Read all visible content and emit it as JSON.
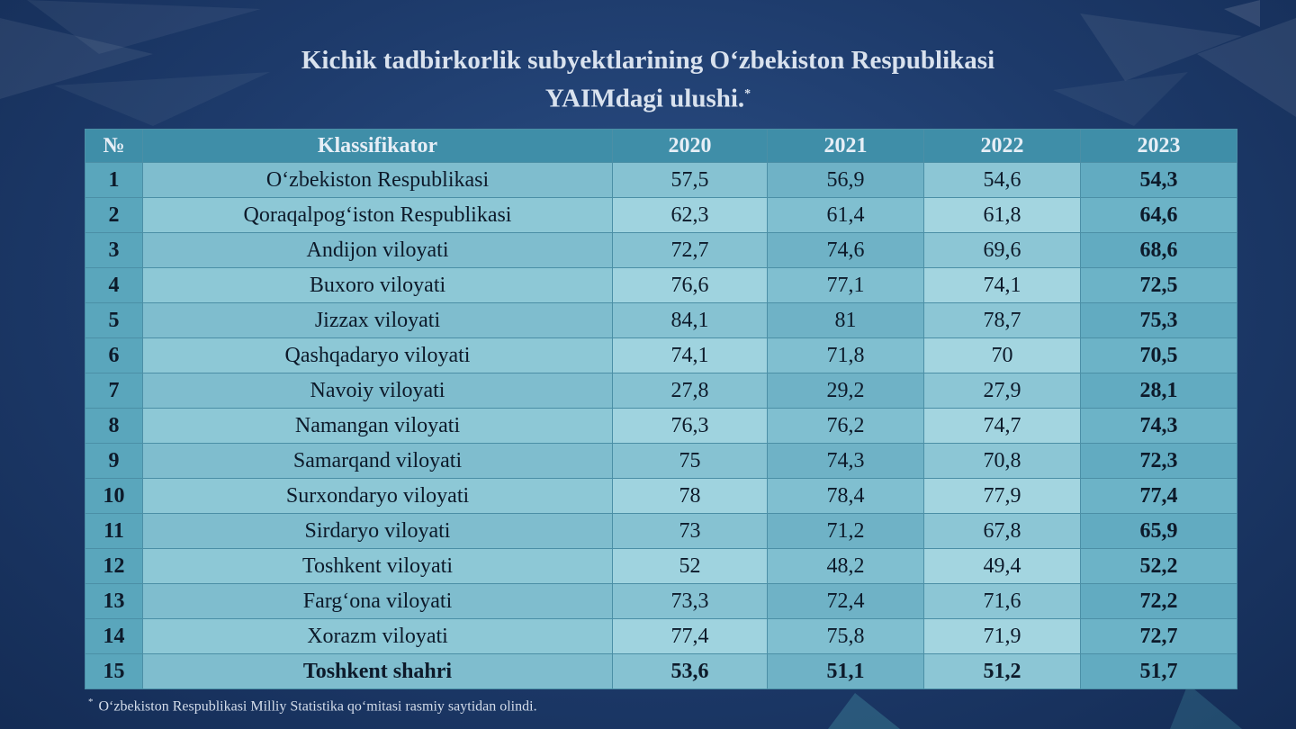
{
  "title_line1": "Kichik tadbirkorlik subyektlarining O‘zbekiston Respublikasi",
  "title_line2": "YAIMdagi ulushi.",
  "title_mark": "*",
  "footnote_mark": "*",
  "footnote": "O‘zbekiston Respublikasi Milliy Statistika qo‘mitasi rasmiy saytidan olindi.",
  "chart_data": {
    "type": "table",
    "columns": [
      "№",
      "Klassifikator",
      "2020",
      "2021",
      "2022",
      "2023"
    ],
    "rows": [
      [
        "1",
        "O‘zbekiston Respublikasi",
        "57,5",
        "56,9",
        "54,6",
        "54,3"
      ],
      [
        "2",
        "Qoraqalpog‘iston Respublikasi",
        "62,3",
        "61,4",
        "61,8",
        "64,6"
      ],
      [
        "3",
        "Andijon viloyati",
        "72,7",
        "74,6",
        "69,6",
        "68,6"
      ],
      [
        "4",
        "Buxoro viloyati",
        "76,6",
        "77,1",
        "74,1",
        "72,5"
      ],
      [
        "5",
        "Jizzax viloyati",
        "84,1",
        "81",
        "78,7",
        "75,3"
      ],
      [
        "6",
        "Qashqadaryo viloyati",
        "74,1",
        "71,8",
        "70",
        "70,5"
      ],
      [
        "7",
        "Navoiy viloyati",
        "27,8",
        "29,2",
        "27,9",
        "28,1"
      ],
      [
        "8",
        "Namangan viloyati",
        "76,3",
        "76,2",
        "74,7",
        "74,3"
      ],
      [
        "9",
        "Samarqand viloyati",
        "75",
        "74,3",
        "70,8",
        "72,3"
      ],
      [
        "10",
        "Surxondaryo viloyati",
        "78",
        "78,4",
        "77,9",
        "77,4"
      ],
      [
        "11",
        "Sirdaryo viloyati",
        "73",
        "71,2",
        "67,8",
        "65,9"
      ],
      [
        "12",
        "Toshkent viloyati",
        "52",
        "48,2",
        "49,4",
        "52,2"
      ],
      [
        "13",
        "Farg‘ona viloyati",
        "73,3",
        "72,4",
        "71,6",
        "72,2"
      ],
      [
        "14",
        "Xorazm viloyati",
        "77,4",
        "75,8",
        "71,9",
        "72,7"
      ],
      [
        "15",
        "Toshkent shahri",
        "53,6",
        "51,1",
        "51,2",
        "51,7"
      ]
    ]
  }
}
